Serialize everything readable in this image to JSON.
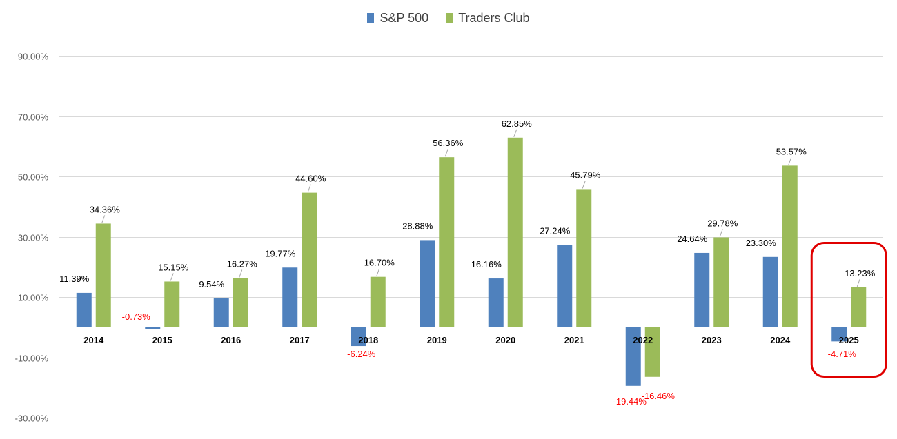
{
  "chart_data": {
    "type": "bar",
    "title": "",
    "xlabel": "",
    "ylabel": "",
    "categories": [
      "2014",
      "2015",
      "2016",
      "2017",
      "2018",
      "2019",
      "2020",
      "2021",
      "2022",
      "2023",
      "2024",
      "2025"
    ],
    "series": [
      {
        "name": "S&P 500",
        "color": "#4f81bd",
        "values": [
          11.39,
          -0.73,
          9.54,
          19.77,
          -6.24,
          28.88,
          16.16,
          27.24,
          -19.44,
          24.64,
          23.3,
          -4.71
        ],
        "labels": [
          "11.39%",
          "-0.73%",
          "9.54%",
          "19.77%",
          "-6.24%",
          "28.88%",
          "16.16%",
          "27.24%",
          "-19.44%",
          "24.64%",
          "23.30%",
          "-4.71%"
        ]
      },
      {
        "name": "Traders Club",
        "color": "#9bbb59",
        "values": [
          34.36,
          15.15,
          16.27,
          44.6,
          16.7,
          56.36,
          62.85,
          45.79,
          -16.46,
          29.78,
          53.57,
          13.23
        ],
        "labels": [
          "34.36%",
          "15.15%",
          "16.27%",
          "44.60%",
          "16.70%",
          "56.36%",
          "62.85%",
          "45.79%",
          "-16.46%",
          "29.78%",
          "53.57%",
          "13.23%"
        ]
      }
    ],
    "yticks": [
      90,
      70,
      50,
      30,
      10,
      -10,
      -30
    ],
    "ytick_labels": [
      "90.00%",
      "70.00%",
      "50.00%",
      "30.00%",
      "10.00%",
      "-10.00%",
      "-30.00%"
    ],
    "ylim": [
      -30,
      90
    ],
    "grid": true,
    "legend": "top-center",
    "negative_label_color": "#ff0000",
    "highlight": {
      "category": "2025",
      "color": "#e00000"
    }
  }
}
